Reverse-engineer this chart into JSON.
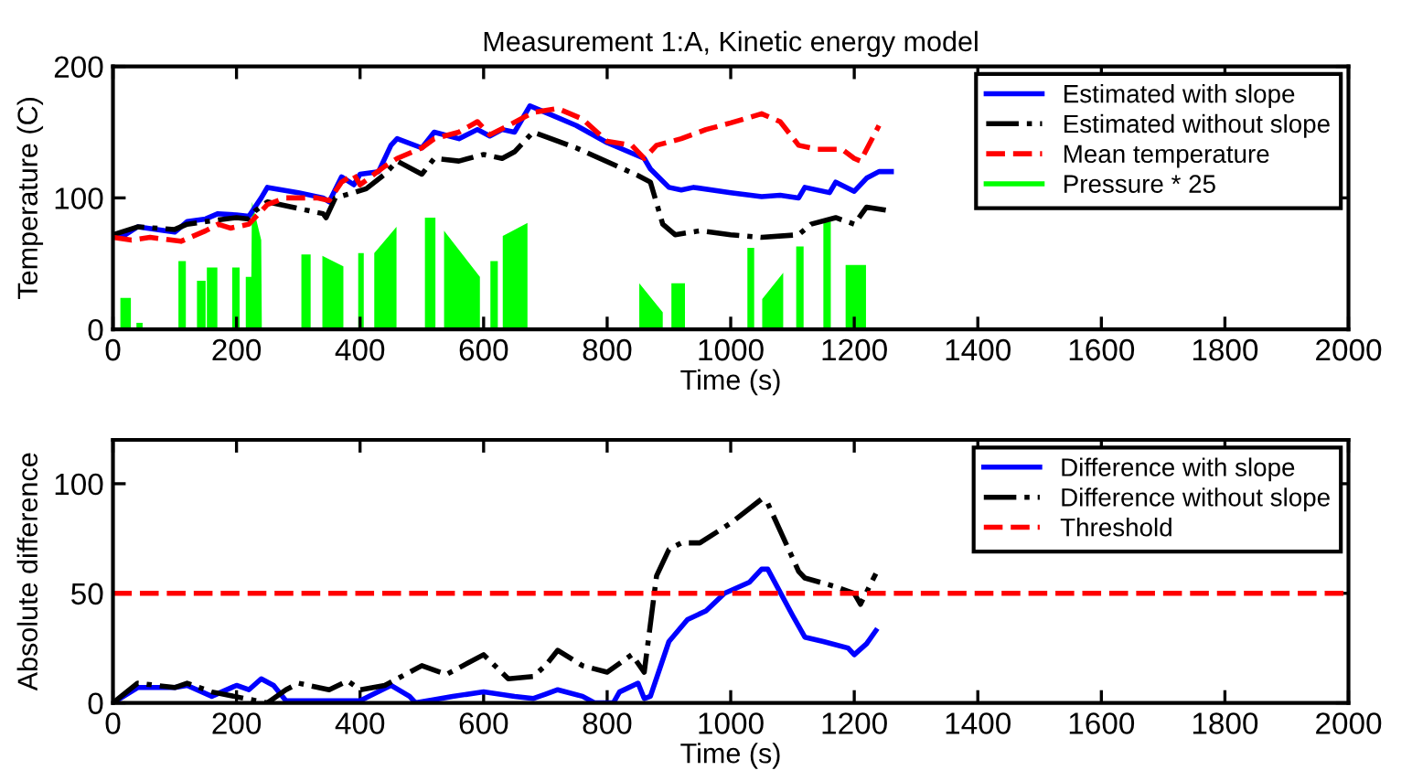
{
  "chart_data": [
    {
      "type": "line",
      "title": "Measurement 1:A, Kinetic energy model",
      "xlabel": "Time (s)",
      "ylabel": "Temperature (C)",
      "xlim": [
        0,
        2000
      ],
      "xticks": [
        0,
        200,
        400,
        600,
        800,
        1000,
        1200,
        1400,
        1600,
        1800,
        2000
      ],
      "ylim": [
        0,
        200
      ],
      "yticks": [
        0,
        100,
        200
      ],
      "grid": false,
      "legend": "top right",
      "series": [
        {
          "name": "Estimated with slope",
          "color": "#0000ff",
          "line_style": "solid",
          "x": [
            0,
            20,
            40,
            100,
            120,
            150,
            170,
            200,
            220,
            240,
            250,
            300,
            340,
            350,
            370,
            390,
            400,
            430,
            450,
            460,
            500,
            520,
            560,
            590,
            610,
            630,
            650,
            675,
            700,
            750,
            800,
            860,
            870,
            900,
            920,
            940,
            1000,
            1050,
            1080,
            1110,
            1120,
            1160,
            1170,
            1200,
            1220,
            1240,
            1260
          ],
          "values": [
            72,
            72,
            78,
            74,
            82,
            84,
            88,
            87,
            86,
            100,
            108,
            104,
            100,
            97,
            116,
            110,
            118,
            120,
            140,
            145,
            138,
            150,
            145,
            152,
            147,
            152,
            150,
            170,
            165,
            155,
            142,
            130,
            122,
            108,
            106,
            108,
            104,
            101,
            102,
            100,
            108,
            104,
            112,
            105,
            115,
            120,
            120
          ]
        },
        {
          "name": "Estimated without slope",
          "color": "#000000",
          "line_style": "dashdot",
          "x": [
            0,
            40,
            100,
            120,
            150,
            200,
            220,
            230,
            250,
            300,
            340,
            345,
            360,
            390,
            410,
            440,
            460,
            500,
            510,
            520,
            560,
            600,
            630,
            650,
            680,
            750,
            850,
            870,
            890,
            910,
            950,
            1000,
            1050,
            1110,
            1130,
            1170,
            1200,
            1220,
            1260
          ],
          "values": [
            72,
            78,
            76,
            80,
            82,
            85,
            84,
            90,
            97,
            92,
            88,
            85,
            100,
            104,
            107,
            118,
            128,
            118,
            124,
            130,
            128,
            133,
            130,
            135,
            150,
            138,
            117,
            112,
            80,
            72,
            75,
            72,
            70,
            72,
            80,
            85,
            80,
            93,
            90
          ]
        },
        {
          "name": "Mean temperature",
          "color": "#ff0000",
          "line_style": "dashed",
          "x": [
            0,
            30,
            60,
            110,
            150,
            170,
            190,
            220,
            250,
            280,
            330,
            350,
            370,
            390,
            400,
            440,
            460,
            500,
            520,
            560,
            590,
            610,
            640,
            680,
            720,
            760,
            800,
            840,
            850,
            860,
            880,
            920,
            960,
            1000,
            1050,
            1080,
            1110,
            1140,
            1180,
            1200,
            1210,
            1240
          ],
          "values": [
            70,
            68,
            70,
            67,
            75,
            80,
            77,
            80,
            95,
            100,
            100,
            98,
            112,
            118,
            110,
            124,
            130,
            138,
            145,
            150,
            158,
            148,
            155,
            165,
            168,
            160,
            143,
            140,
            135,
            130,
            140,
            145,
            152,
            157,
            164,
            158,
            140,
            137,
            137,
            130,
            128,
            155
          ]
        },
        {
          "name": "Pressure * 25",
          "type": "area",
          "color": "#00ff00",
          "x": [
            12,
            12,
            29,
            29,
            38,
            38,
            48,
            48,
            106,
            106,
            118,
            118,
            136,
            136,
            150,
            150,
            152,
            152,
            169,
            169,
            193,
            193,
            205,
            205,
            215,
            215,
            224,
            225,
            240,
            241,
            305,
            305,
            320,
            320,
            339,
            339,
            373,
            373,
            397,
            397,
            406,
            406,
            423,
            423,
            459,
            459,
            505,
            505,
            522,
            522,
            536,
            536,
            594,
            594,
            611,
            611,
            623,
            623,
            631,
            631,
            671,
            671,
            852,
            852,
            890,
            890,
            904,
            904,
            926,
            926,
            1027,
            1027,
            1038,
            1038,
            1051,
            1051,
            1085,
            1085,
            1106,
            1106,
            1118,
            1118,
            1150,
            1150,
            1162,
            1162,
            1186,
            1186,
            1219,
            1219
          ],
          "values": [
            0,
            24,
            24,
            0,
            0,
            5,
            5,
            0,
            0,
            52,
            52,
            0,
            0,
            37,
            37,
            0,
            0,
            47,
            47,
            0,
            0,
            47,
            47,
            0,
            0,
            40,
            40,
            97,
            68,
            0,
            0,
            57,
            57,
            0,
            0,
            56,
            48,
            0,
            0,
            58,
            58,
            0,
            0,
            58,
            78,
            0,
            0,
            85,
            85,
            0,
            0,
            75,
            40,
            0,
            0,
            52,
            52,
            0,
            0,
            71,
            81,
            0,
            0,
            35,
            13,
            0,
            0,
            35,
            35,
            0,
            0,
            62,
            62,
            0,
            0,
            23,
            43,
            0,
            0,
            63,
            63,
            0,
            0,
            82,
            82,
            0,
            0,
            49,
            49,
            0
          ]
        }
      ]
    },
    {
      "type": "line",
      "xlabel": "Time (s)",
      "ylabel": "Absolute difference",
      "xlim": [
        0,
        2000
      ],
      "xticks": [
        0,
        200,
        400,
        600,
        800,
        1000,
        1200,
        1400,
        1600,
        1800,
        2000
      ],
      "ylim": [
        0,
        120
      ],
      "yticks": [
        0,
        50,
        100
      ],
      "grid": false,
      "legend": "top right",
      "ref_lines": [
        {
          "axis": "y",
          "value": 50,
          "label": "Threshold",
          "color": "#ff0000",
          "line_style": "dashed"
        }
      ],
      "series": [
        {
          "name": "Difference with slope",
          "color": "#0000ff",
          "line_style": "solid",
          "x": [
            0,
            40,
            100,
            120,
            160,
            200,
            220,
            240,
            260,
            280,
            400,
            450,
            480,
            490,
            550,
            600,
            650,
            680,
            700,
            720,
            760,
            780,
            810,
            820,
            850,
            860,
            870,
            900,
            930,
            960,
            990,
            1030,
            1050,
            1060,
            1100,
            1120,
            1150,
            1190,
            1200,
            1220,
            1235
          ],
          "values": [
            0,
            7,
            7,
            8,
            3,
            8,
            6,
            11,
            8,
            1,
            1,
            8,
            3,
            0,
            3,
            5,
            3,
            2,
            4,
            6,
            3,
            0,
            0,
            5,
            9,
            2,
            3,
            28,
            38,
            42,
            50,
            55,
            61,
            61,
            40,
            30,
            28,
            25,
            22,
            27,
            33
          ]
        },
        {
          "name": "Difference without slope",
          "color": "#000000",
          "line_style": "dashdot",
          "x": [
            0,
            40,
            100,
            120,
            160,
            250,
            280,
            300,
            350,
            380,
            400,
            440,
            500,
            540,
            600,
            640,
            680,
            700,
            720,
            760,
            800,
            840,
            860,
            880,
            900,
            920,
            950,
            1000,
            1050,
            1060,
            1110,
            1120,
            1170,
            1200,
            1210,
            1235
          ],
          "values": [
            0,
            9,
            7,
            9,
            5,
            0,
            6,
            9,
            6,
            10,
            6,
            8,
            17,
            13,
            22,
            11,
            12,
            17,
            24,
            17,
            14,
            22,
            14,
            58,
            70,
            73,
            73,
            82,
            93,
            91,
            60,
            57,
            53,
            50,
            45,
            59
          ]
        }
      ]
    }
  ]
}
